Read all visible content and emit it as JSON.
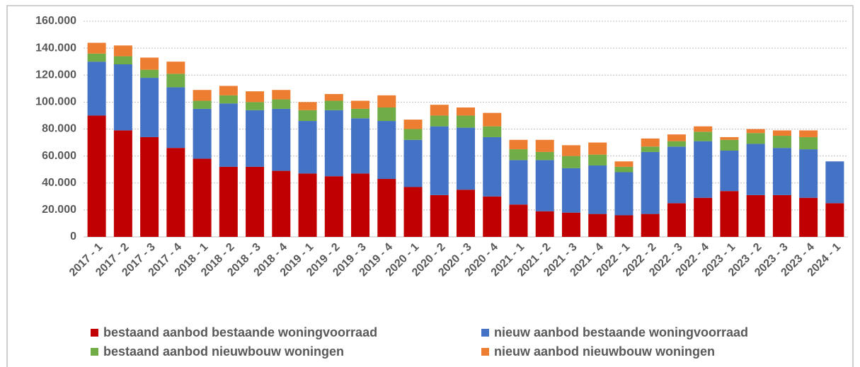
{
  "chart_data": {
    "type": "stacked_bar",
    "categories": [
      "2017 - 1",
      "2017 - 2",
      "2017 - 3",
      "2017 - 4",
      "2018 - 1",
      "2018 - 2",
      "2018 - 3",
      "2018 - 4",
      "2019 - 1",
      "2019 - 2",
      "2019 - 3",
      "2019 - 4",
      "2020 - 1",
      "2020 - 2",
      "2020 - 3",
      "2020 - 4",
      "2021 - 1",
      "2021 - 2",
      "2021 - 3",
      "2021 - 4",
      "2022 - 1",
      "2022 - 2",
      "2022 - 3",
      "2022 - 4",
      "2023 - 1",
      "2023 - 2",
      "2023 - 3",
      "2023 - 4",
      "2024 - 1"
    ],
    "series": [
      {
        "name": "bestaand aanbod bestaande woningvoorraad",
        "color": "#c00000",
        "values": [
          90000,
          79000,
          74000,
          66000,
          58000,
          52000,
          52000,
          49000,
          47000,
          45000,
          47000,
          43000,
          37000,
          31000,
          35000,
          30000,
          24000,
          19000,
          18000,
          17000,
          16000,
          17000,
          25000,
          29000,
          34000,
          31000,
          31000,
          29000,
          25000
        ]
      },
      {
        "name": "nieuw aanbod bestaande woningvoorraad",
        "color": "#4472c4",
        "values": [
          40000,
          49000,
          44000,
          45000,
          37000,
          47000,
          42000,
          46000,
          39000,
          49000,
          41000,
          43000,
          35000,
          51000,
          46000,
          44000,
          33000,
          38000,
          33000,
          36000,
          32000,
          46000,
          42000,
          42000,
          30000,
          38000,
          35000,
          36000,
          31000
        ]
      },
      {
        "name": "bestaand aanbod nieuwbouw woningen",
        "color": "#70ad47",
        "values": [
          6000,
          6000,
          6000,
          10000,
          6000,
          6000,
          6000,
          7000,
          8000,
          7000,
          7000,
          10000,
          8000,
          8000,
          9000,
          8000,
          8000,
          6000,
          9000,
          8000,
          4000,
          4000,
          4000,
          7000,
          8000,
          8000,
          9000,
          9000,
          0
        ]
      },
      {
        "name": "nieuw aanbod nieuwbouw woningen",
        "color": "#ed7d31",
        "values": [
          8000,
          8000,
          9000,
          9000,
          8000,
          7000,
          8000,
          7000,
          6000,
          5000,
          6000,
          9000,
          7000,
          8000,
          6000,
          10000,
          7000,
          9000,
          8000,
          9000,
          4000,
          6000,
          5000,
          4000,
          2000,
          3000,
          4000,
          5000,
          0
        ]
      }
    ],
    "ylim": [
      0,
      160000
    ],
    "yticks": [
      0,
      {
        "value": 20000,
        "label": "20.000"
      },
      {
        "value": 40000,
        "label": "40.000"
      },
      {
        "value": 60000,
        "label": "60.000"
      },
      {
        "value": 80000,
        "label": "80.000"
      },
      {
        "value": 100000,
        "label": "100.000"
      },
      {
        "value": 120000,
        "label": "120.000"
      },
      {
        "value": 140000,
        "label": "140.000"
      },
      {
        "value": 160000,
        "label": "160.000"
      }
    ],
    "grid": true
  }
}
